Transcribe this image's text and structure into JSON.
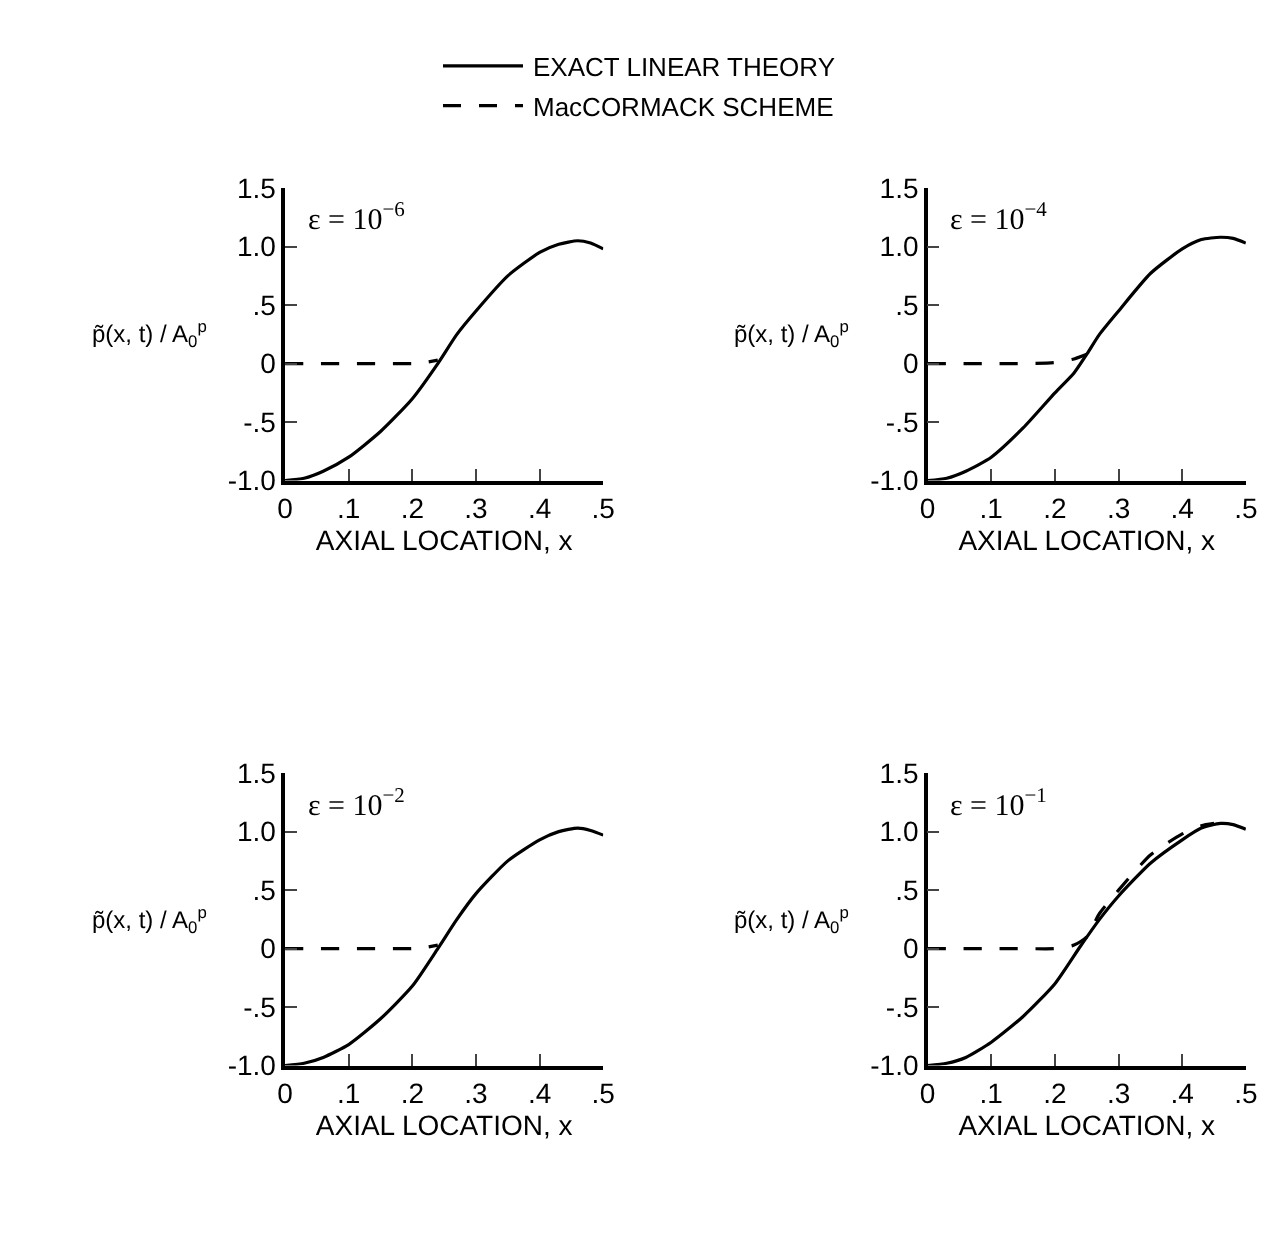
{
  "chart_data": [
    {
      "type": "line",
      "xlabel": "AXIAL LOCATION, x",
      "ylabel": "p̃(x, t) / A$_{0}$$^{p}$",
      "annotations": [
        "ε = 10$^{−6}$"
      ],
      "xlim": [
        0,
        0.5
      ],
      "ylim": [
        -1.0,
        1.5
      ],
      "xticks": [
        0,
        {
          "value": 0.1,
          "label": ".1"
        },
        {
          "value": 0.2,
          "label": ".2"
        },
        {
          "value": 0.3,
          "label": ".3"
        },
        {
          "value": 0.4,
          "label": ".4"
        },
        {
          "value": 0.5,
          "label": ".5"
        }
      ],
      "yticks": [
        {
          "value": -1.0,
          "label": "-1.0"
        },
        {
          "value": -0.5,
          "label": "-.5"
        },
        0,
        {
          "value": 0.5,
          "label": ".5"
        },
        {
          "value": 1.0,
          "label": "1.0"
        },
        {
          "value": 1.5,
          "label": "1.5"
        }
      ],
      "legend": "top",
      "series": [
        {
          "name": "EXACT LINEAR THEORY",
          "color": "#000000",
          "line_style": "solid",
          "x": [
            0,
            0.03,
            0.06,
            0.1,
            0.15,
            0.2,
            0.24,
            0.27,
            0.3,
            0.35,
            0.4,
            0.43,
            0.46,
            0.48,
            0.5
          ],
          "values": [
            -1.0,
            -0.98,
            -0.92,
            -0.8,
            -0.58,
            -0.3,
            0.0,
            0.25,
            0.45,
            0.75,
            0.95,
            1.02,
            1.05,
            1.03,
            0.98
          ]
        },
        {
          "name": "MacCORMACK SCHEME",
          "color": "#000000",
          "line_style": "dashed",
          "x": [
            0,
            0.05,
            0.1,
            0.15,
            0.2,
            0.22,
            0.24
          ],
          "values": [
            0.0,
            0.0,
            0.0,
            0.0,
            0.0,
            0.01,
            0.03
          ]
        }
      ]
    },
    {
      "type": "line",
      "xlabel": "AXIAL LOCATION, x",
      "ylabel": "p̃(x, t) / A$_{0}$$^{p}$",
      "annotations": [
        "ε = 10$^{−4}$"
      ],
      "xlim": [
        0,
        0.5
      ],
      "ylim": [
        -1.0,
        1.5
      ],
      "xticks": [
        0,
        {
          "value": 0.1,
          "label": ".1"
        },
        {
          "value": 0.2,
          "label": ".2"
        },
        {
          "value": 0.3,
          "label": ".3"
        },
        {
          "value": 0.4,
          "label": ".4"
        },
        {
          "value": 0.5,
          "label": ".5"
        }
      ],
      "yticks": [
        {
          "value": -1.0,
          "label": "-1.0"
        },
        {
          "value": -0.5,
          "label": "-.5"
        },
        0,
        {
          "value": 0.5,
          "label": ".5"
        },
        {
          "value": 1.0,
          "label": "1.0"
        },
        {
          "value": 1.5,
          "label": "1.5"
        }
      ],
      "series": [
        {
          "color": "#000000",
          "line_style": "solid",
          "x": [
            0,
            0.03,
            0.06,
            0.1,
            0.15,
            0.2,
            0.23,
            0.25,
            0.27,
            0.3,
            0.35,
            0.4,
            0.43,
            0.46,
            0.48,
            0.5
          ],
          "values": [
            -1.0,
            -0.98,
            -0.92,
            -0.8,
            -0.55,
            -0.25,
            -0.08,
            0.08,
            0.25,
            0.45,
            0.77,
            0.98,
            1.06,
            1.08,
            1.07,
            1.03
          ]
        },
        {
          "color": "#000000",
          "line_style": "dashed",
          "x": [
            0,
            0.05,
            0.1,
            0.15,
            0.2,
            0.23,
            0.25
          ],
          "values": [
            0.0,
            0.0,
            0.0,
            0.0,
            0.01,
            0.04,
            0.08
          ]
        }
      ]
    },
    {
      "type": "line",
      "xlabel": "AXIAL LOCATION, x",
      "ylabel": "p̃(x, t) / A$_{0}$$^{p}$",
      "annotations": [
        "ε = 10$^{−2}$"
      ],
      "xlim": [
        0,
        0.5
      ],
      "ylim": [
        -1.0,
        1.5
      ],
      "xticks": [
        0,
        {
          "value": 0.1,
          "label": ".1"
        },
        {
          "value": 0.2,
          "label": ".2"
        },
        {
          "value": 0.3,
          "label": ".3"
        },
        {
          "value": 0.4,
          "label": ".4"
        },
        {
          "value": 0.5,
          "label": ".5"
        }
      ],
      "yticks": [
        {
          "value": -1.0,
          "label": "-1.0"
        },
        {
          "value": -0.5,
          "label": "-.5"
        },
        0,
        {
          "value": 0.5,
          "label": ".5"
        },
        {
          "value": 1.0,
          "label": "1.0"
        },
        {
          "value": 1.5,
          "label": "1.5"
        }
      ],
      "series": [
        {
          "color": "#000000",
          "line_style": "solid",
          "x": [
            0,
            0.03,
            0.06,
            0.1,
            0.15,
            0.2,
            0.24,
            0.27,
            0.3,
            0.35,
            0.4,
            0.43,
            0.46,
            0.48,
            0.5
          ],
          "values": [
            -1.0,
            -0.98,
            -0.93,
            -0.82,
            -0.6,
            -0.32,
            0.0,
            0.25,
            0.47,
            0.75,
            0.93,
            1.0,
            1.03,
            1.01,
            0.97
          ]
        },
        {
          "color": "#000000",
          "line_style": "dashed",
          "x": [
            0,
            0.05,
            0.1,
            0.15,
            0.2,
            0.22,
            0.24
          ],
          "values": [
            0.0,
            0.0,
            0.0,
            0.0,
            0.0,
            0.01,
            0.03
          ]
        }
      ]
    },
    {
      "type": "line",
      "xlabel": "AXIAL LOCATION, x",
      "ylabel": "p̃(x, t) / A$_{0}$$^{p}$",
      "annotations": [
        "ε = 10$^{−1}$"
      ],
      "xlim": [
        0,
        0.5
      ],
      "ylim": [
        -1.0,
        1.5
      ],
      "xticks": [
        0,
        {
          "value": 0.1,
          "label": ".1"
        },
        {
          "value": 0.2,
          "label": ".2"
        },
        {
          "value": 0.3,
          "label": ".3"
        },
        {
          "value": 0.4,
          "label": ".4"
        },
        {
          "value": 0.5,
          "label": ".5"
        }
      ],
      "yticks": [
        {
          "value": -1.0,
          "label": "-1.0"
        },
        {
          "value": -0.5,
          "label": "-.5"
        },
        0,
        {
          "value": 0.5,
          "label": ".5"
        },
        {
          "value": 1.0,
          "label": "1.0"
        },
        {
          "value": 1.5,
          "label": "1.5"
        }
      ],
      "series": [
        {
          "color": "#000000",
          "line_style": "solid",
          "x": [
            0,
            0.03,
            0.06,
            0.1,
            0.15,
            0.2,
            0.24,
            0.27,
            0.3,
            0.35,
            0.4,
            0.43,
            0.46,
            0.48,
            0.5
          ],
          "values": [
            -1.0,
            -0.98,
            -0.93,
            -0.8,
            -0.58,
            -0.3,
            0.02,
            0.25,
            0.45,
            0.73,
            0.93,
            1.03,
            1.07,
            1.06,
            1.02
          ]
        },
        {
          "color": "#000000",
          "line_style": "dashed",
          "x": [
            0,
            0.05,
            0.1,
            0.15,
            0.2,
            0.23,
            0.25,
            0.27,
            0.3,
            0.35,
            0.4,
            0.43,
            0.45
          ],
          "values": [
            0.0,
            0.0,
            0.0,
            0.0,
            0.0,
            0.03,
            0.1,
            0.3,
            0.5,
            0.8,
            0.98,
            1.05,
            1.07
          ]
        }
      ]
    }
  ]
}
